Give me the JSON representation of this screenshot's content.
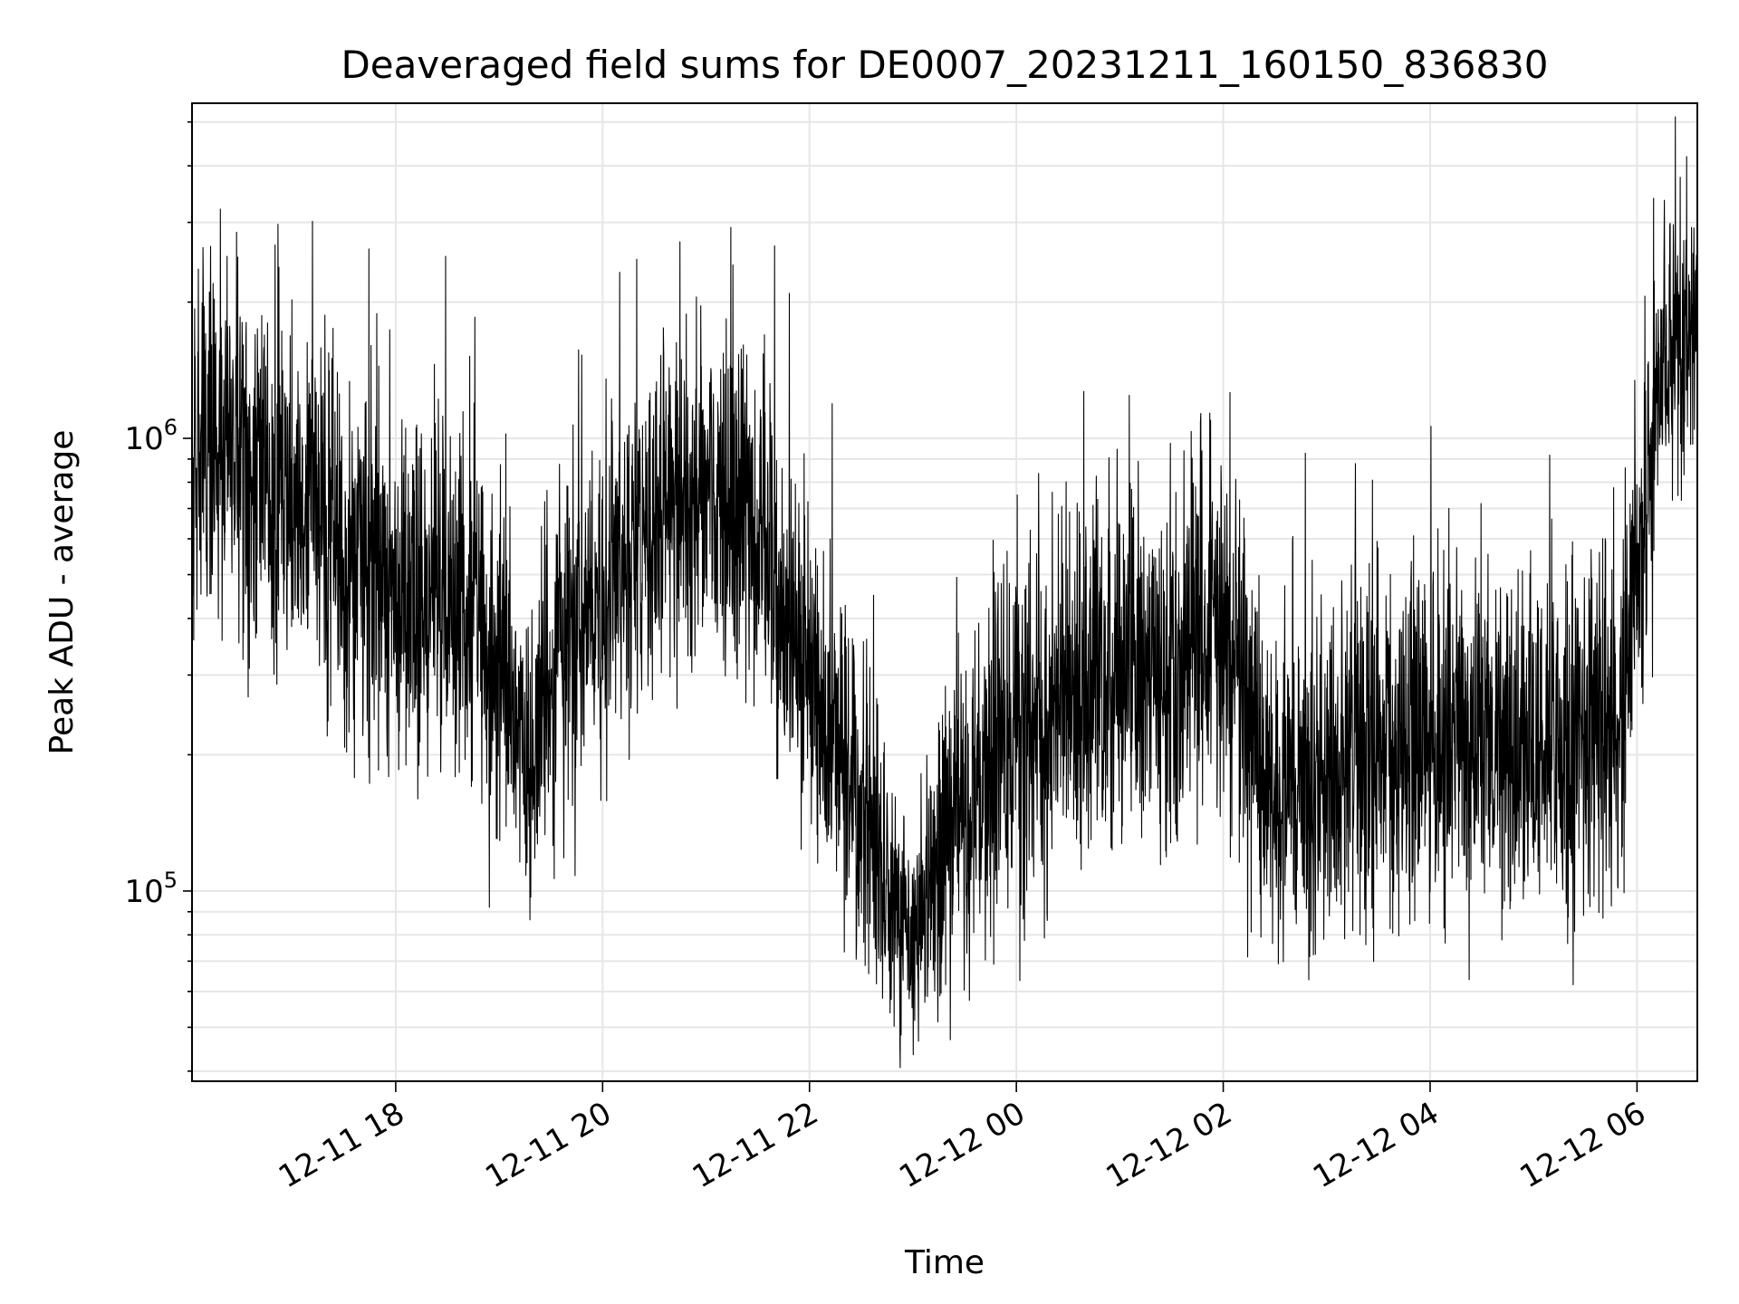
{
  "chart_data": {
    "type": "line",
    "title": "Deaveraged field sums for DE0007_20231211_160150_836830",
    "xlabel": "Time",
    "ylabel": "Peak ADU - average",
    "x_range": [
      "2023-12-11T16:01:50",
      "2023-12-12T06:35:00"
    ],
    "y_scale": "log",
    "ylim": [
      38000,
      5500000
    ],
    "grid": true,
    "line_color": "#000000",
    "x_ticks": [
      {
        "value": "2023-12-11T18:00",
        "label": "12-11 18"
      },
      {
        "value": "2023-12-11T20:00",
        "label": "12-11 20"
      },
      {
        "value": "2023-12-11T22:00",
        "label": "12-11 22"
      },
      {
        "value": "2023-12-12T00:00",
        "label": "12-12 00"
      },
      {
        "value": "2023-12-12T02:00",
        "label": "12-12 02"
      },
      {
        "value": "2023-12-12T04:00",
        "label": "12-12 04"
      },
      {
        "value": "2023-12-12T06:00",
        "label": "12-12 06"
      }
    ],
    "y_ticks": [
      {
        "value": 100000,
        "base": "10",
        "exp": "5"
      },
      {
        "value": 1000000,
        "base": "10",
        "exp": "6"
      }
    ],
    "series": [
      {
        "name": "",
        "trend": [
          {
            "t": "2023-12-11T16:01:50",
            "median": 1000000,
            "spread": 0.55
          },
          {
            "t": "2023-12-11T16:30",
            "median": 820000,
            "spread": 0.6
          },
          {
            "t": "2023-12-11T17:00",
            "median": 720000,
            "spread": 0.6
          },
          {
            "t": "2023-12-11T17:30",
            "median": 600000,
            "spread": 0.6
          },
          {
            "t": "2023-12-11T18:00",
            "median": 480000,
            "spread": 0.6
          },
          {
            "t": "2023-12-11T18:30",
            "median": 440000,
            "spread": 0.6
          },
          {
            "t": "2023-12-11T19:00",
            "median": 320000,
            "spread": 0.6
          },
          {
            "t": "2023-12-11T19:20",
            "median": 190000,
            "spread": 0.45
          },
          {
            "t": "2023-12-11T19:35",
            "median": 330000,
            "spread": 0.6
          },
          {
            "t": "2023-12-11T20:00",
            "median": 420000,
            "spread": 0.6
          },
          {
            "t": "2023-12-11T20:30",
            "median": 660000,
            "spread": 0.6
          },
          {
            "t": "2023-12-11T21:00",
            "median": 780000,
            "spread": 0.6
          },
          {
            "t": "2023-12-11T21:30",
            "median": 620000,
            "spread": 0.6
          },
          {
            "t": "2023-12-11T22:00",
            "median": 300000,
            "spread": 0.6
          },
          {
            "t": "2023-12-11T22:30",
            "median": 140000,
            "spread": 0.55
          },
          {
            "t": "2023-12-11T23:00",
            "median": 72000,
            "spread": 0.35
          },
          {
            "t": "2023-12-11T23:20",
            "median": 130000,
            "spread": 0.55
          },
          {
            "t": "2023-12-12T00:00",
            "median": 230000,
            "spread": 0.6
          },
          {
            "t": "2023-12-12T00:30",
            "median": 260000,
            "spread": 0.6
          },
          {
            "t": "2023-12-12T01:00",
            "median": 290000,
            "spread": 0.6
          },
          {
            "t": "2023-12-12T01:30",
            "median": 330000,
            "spread": 0.6
          },
          {
            "t": "2023-12-12T02:00",
            "median": 380000,
            "spread": 0.6
          },
          {
            "t": "2023-12-12T02:30",
            "median": 150000,
            "spread": 0.55
          },
          {
            "t": "2023-12-12T03:00",
            "median": 180000,
            "spread": 0.6
          },
          {
            "t": "2023-12-12T04:00",
            "median": 220000,
            "spread": 0.6
          },
          {
            "t": "2023-12-12T05:00",
            "median": 200000,
            "spread": 0.6
          },
          {
            "t": "2023-12-12T05:50",
            "median": 230000,
            "spread": 0.6
          },
          {
            "t": "2023-12-12T06:05",
            "median": 700000,
            "spread": 0.6
          },
          {
            "t": "2023-12-12T06:15",
            "median": 1500000,
            "spread": 0.45
          },
          {
            "t": "2023-12-12T06:35:00",
            "median": 1700000,
            "spread": 0.45
          }
        ]
      }
    ]
  }
}
